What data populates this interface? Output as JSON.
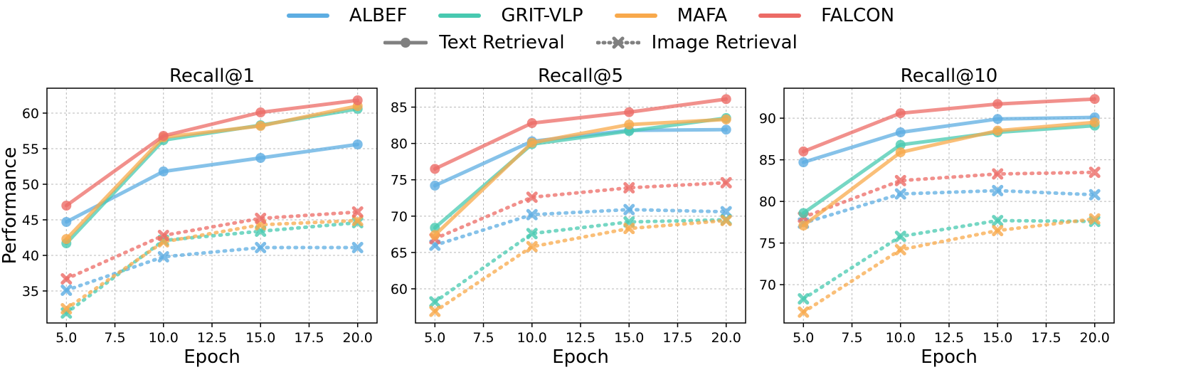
{
  "legend": {
    "methods": [
      {
        "name": "ALBEF",
        "color": "#5DADE2"
      },
      {
        "name": "GRIT-VLP",
        "color": "#48C9B0"
      },
      {
        "name": "MAFA",
        "color": "#F8A94B"
      },
      {
        "name": "FALCON",
        "color": "#EC6B66"
      }
    ],
    "styles": [
      {
        "name": "Text Retrieval",
        "marker": "circle",
        "line": "solid"
      },
      {
        "name": "Image Retrieval",
        "marker": "x",
        "line": "dotted"
      }
    ]
  },
  "chart_data": [
    {
      "type": "line",
      "title": "Recall@1",
      "xlabel": "Epoch",
      "ylabel": "Performance",
      "x": [
        5.0,
        10.0,
        15.0,
        20.0
      ],
      "xticks": [
        "5.0",
        "7.5",
        "10.0",
        "12.5",
        "15.0",
        "17.5",
        "20.0"
      ],
      "xlim": [
        4.0,
        21.0
      ],
      "ylim": [
        30.5,
        63.5
      ],
      "yticks": [
        35,
        40,
        45,
        50,
        55,
        60
      ],
      "grid": true,
      "series": [
        {
          "method": "ALBEF",
          "kind": "Text Retrieval",
          "values": [
            44.7,
            51.8,
            53.7,
            55.6
          ]
        },
        {
          "method": "GRIT-VLP",
          "kind": "Text Retrieval",
          "values": [
            41.7,
            56.2,
            58.3,
            60.6
          ]
        },
        {
          "method": "MAFA",
          "kind": "Text Retrieval",
          "values": [
            42.3,
            56.6,
            58.2,
            61.0
          ]
        },
        {
          "method": "FALCON",
          "kind": "Text Retrieval",
          "values": [
            47.0,
            56.8,
            60.1,
            61.8
          ]
        },
        {
          "method": "ALBEF",
          "kind": "Image Retrieval",
          "values": [
            35.1,
            39.8,
            41.1,
            41.1
          ]
        },
        {
          "method": "GRIT-VLP",
          "kind": "Image Retrieval",
          "values": [
            31.9,
            42.1,
            43.4,
            44.6
          ]
        },
        {
          "method": "MAFA",
          "kind": "Image Retrieval",
          "values": [
            32.5,
            41.9,
            44.3,
            44.9
          ]
        },
        {
          "method": "FALCON",
          "kind": "Image Retrieval",
          "values": [
            36.7,
            42.8,
            45.2,
            46.1
          ]
        }
      ]
    },
    {
      "type": "line",
      "title": "Recall@5",
      "xlabel": "Epoch",
      "ylabel": "",
      "x": [
        5.0,
        10.0,
        15.0,
        20.0
      ],
      "xticks": [
        "5.0",
        "7.5",
        "10.0",
        "12.5",
        "15.0",
        "17.5",
        "20.0"
      ],
      "xlim": [
        4.0,
        21.0
      ],
      "ylim": [
        55.3,
        87.6
      ],
      "yticks": [
        60,
        65,
        70,
        75,
        80,
        85
      ],
      "grid": true,
      "series": [
        {
          "method": "ALBEF",
          "kind": "Text Retrieval",
          "values": [
            74.2,
            80.3,
            81.8,
            81.9
          ]
        },
        {
          "method": "GRIT-VLP",
          "kind": "Text Retrieval",
          "values": [
            68.4,
            79.9,
            81.7,
            83.5
          ]
        },
        {
          "method": "MAFA",
          "kind": "Text Retrieval",
          "values": [
            67.4,
            80.1,
            82.6,
            83.3
          ]
        },
        {
          "method": "FALCON",
          "kind": "Text Retrieval",
          "values": [
            76.5,
            82.8,
            84.3,
            86.1
          ]
        },
        {
          "method": "ALBEF",
          "kind": "Image Retrieval",
          "values": [
            66.0,
            70.2,
            70.9,
            70.6
          ]
        },
        {
          "method": "GRIT-VLP",
          "kind": "Image Retrieval",
          "values": [
            58.2,
            67.6,
            69.2,
            69.5
          ]
        },
        {
          "method": "MAFA",
          "kind": "Image Retrieval",
          "values": [
            56.9,
            65.8,
            68.3,
            69.4
          ]
        },
        {
          "method": "FALCON",
          "kind": "Image Retrieval",
          "values": [
            66.9,
            72.6,
            73.9,
            74.6
          ]
        }
      ]
    },
    {
      "type": "line",
      "title": "Recall@10",
      "xlabel": "Epoch",
      "ylabel": "",
      "x": [
        5.0,
        10.0,
        15.0,
        20.0
      ],
      "xticks": [
        "5.0",
        "7.5",
        "10.0",
        "12.5",
        "15.0",
        "17.5",
        "20.0"
      ],
      "xlim": [
        4.0,
        21.0
      ],
      "ylim": [
        65.4,
        93.6
      ],
      "yticks": [
        70,
        75,
        80,
        85,
        90
      ],
      "grid": true,
      "series": [
        {
          "method": "ALBEF",
          "kind": "Text Retrieval",
          "values": [
            84.7,
            88.3,
            89.9,
            90.1
          ]
        },
        {
          "method": "GRIT-VLP",
          "kind": "Text Retrieval",
          "values": [
            78.6,
            86.8,
            88.3,
            89.1
          ]
        },
        {
          "method": "MAFA",
          "kind": "Text Retrieval",
          "values": [
            77.1,
            85.9,
            88.5,
            89.5
          ]
        },
        {
          "method": "FALCON",
          "kind": "Text Retrieval",
          "values": [
            86.0,
            90.6,
            91.7,
            92.3
          ]
        },
        {
          "method": "ALBEF",
          "kind": "Image Retrieval",
          "values": [
            77.4,
            80.9,
            81.3,
            80.8
          ]
        },
        {
          "method": "GRIT-VLP",
          "kind": "Image Retrieval",
          "values": [
            68.3,
            75.8,
            77.7,
            77.6
          ]
        },
        {
          "method": "MAFA",
          "kind": "Image Retrieval",
          "values": [
            66.7,
            74.2,
            76.5,
            77.9
          ]
        },
        {
          "method": "FALCON",
          "kind": "Image Retrieval",
          "values": [
            78.1,
            82.5,
            83.3,
            83.5
          ]
        }
      ]
    }
  ]
}
